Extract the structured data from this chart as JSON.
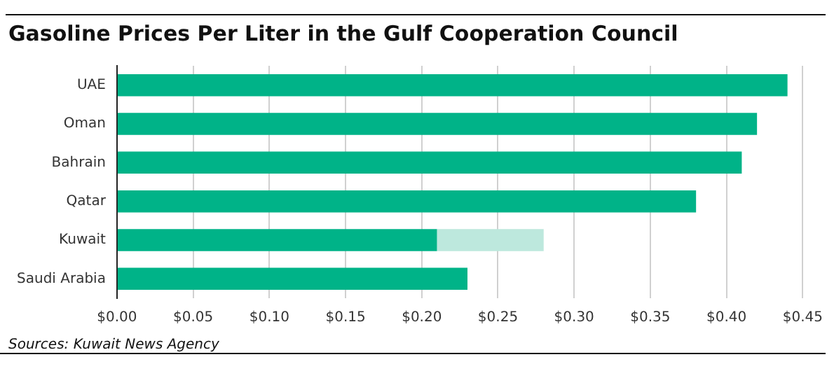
{
  "chart_data": {
    "type": "bar",
    "orientation": "horizontal",
    "stacked": true,
    "title": "Gasoline Prices Per Liter in the Gulf Cooperation Council",
    "categories": [
      "UAE",
      "Oman",
      "Bahrain",
      "Qatar",
      "Kuwait",
      "Saudi Arabia"
    ],
    "series": [
      {
        "color": "#00b388",
        "values": [
          0.44,
          0.42,
          0.41,
          0.38,
          0.21,
          0.23
        ]
      },
      {
        "color": "#bde8dd",
        "values": [
          null,
          null,
          null,
          null,
          0.07,
          null
        ]
      }
    ],
    "xlim": [
      0,
      0.45
    ],
    "xticks": [
      {
        "value": 0,
        "label": "$0.00"
      },
      {
        "value": 0.05,
        "label": "$0.05"
      },
      {
        "value": 0.1,
        "label": "$0.10"
      },
      {
        "value": 0.15,
        "label": "$0.15"
      },
      {
        "value": 0.2,
        "label": "$0.20"
      },
      {
        "value": 0.25,
        "label": "$0.25"
      },
      {
        "value": 0.3,
        "label": "$0.30"
      },
      {
        "value": 0.35,
        "label": "$0.35"
      },
      {
        "value": 0.4,
        "label": "$0.40"
      },
      {
        "value": 0.45,
        "label": "$0.45"
      }
    ],
    "grid": "x",
    "legend": false,
    "annotations": [
      "Sources: Kuwait News Agency"
    ]
  }
}
